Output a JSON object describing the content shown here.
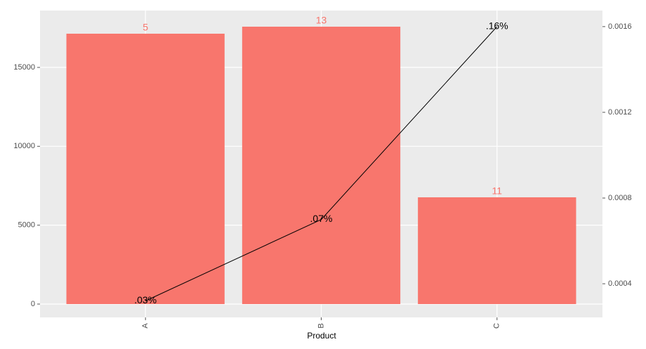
{
  "chart_data": {
    "type": "bar",
    "x_label": "Product",
    "categories": [
      "A",
      "B",
      "C"
    ],
    "series": [
      {
        "type": "bar",
        "color": "#f8766d",
        "values": [
          17137,
          17582,
          6766
        ],
        "bar_labels": [
          "5",
          "13",
          "11"
        ]
      },
      {
        "type": "line",
        "axis": "y2",
        "color": "#000000",
        "values": [
          0.00032,
          0.0007,
          0.0016
        ],
        "value_labels": [
          ".03%",
          ".07%",
          ".16%"
        ]
      }
    ],
    "ylim": [
      -846,
      18605
    ],
    "yticks": [
      0,
      5000,
      10000,
      15000
    ],
    "y2lim": [
      0.000243,
      0.001675
    ],
    "y2ticks": [
      0.0004,
      0.0008,
      0.0012,
      0.0016
    ],
    "grid": true
  }
}
